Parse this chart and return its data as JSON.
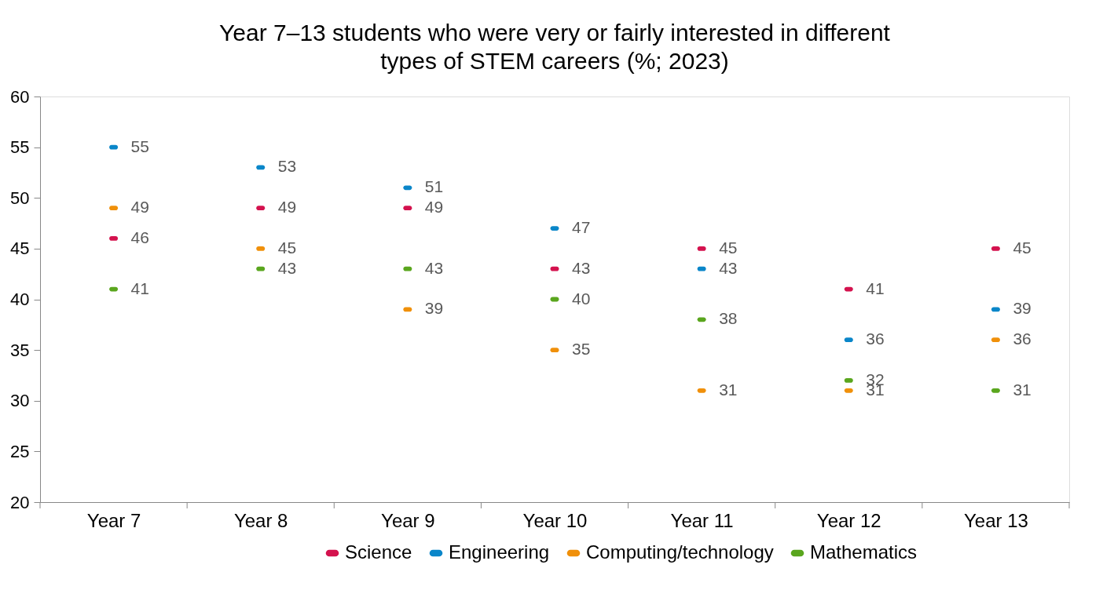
{
  "chart_data": {
    "type": "scatter",
    "title": "Year 7–13 students who were very or fairly interested in different types of STEM careers (%; 2023)",
    "categories": [
      "Year 7",
      "Year 8",
      "Year 9",
      "Year 10",
      "Year 11",
      "Year 12",
      "Year 13"
    ],
    "series": [
      {
        "name": "Science",
        "color": "#d4124e",
        "values": [
          46,
          49,
          49,
          43,
          45,
          41,
          45
        ]
      },
      {
        "name": "Engineering",
        "color": "#0a86c9",
        "values": [
          55,
          53,
          51,
          47,
          43,
          36,
          39
        ]
      },
      {
        "name": "Computing/technology",
        "color": "#f0900a",
        "values": [
          49,
          45,
          39,
          35,
          31,
          31,
          36
        ]
      },
      {
        "name": "Mathematics",
        "color": "#5aa61e",
        "values": [
          41,
          43,
          43,
          40,
          38,
          32,
          31
        ]
      }
    ],
    "ylim": [
      20,
      60
    ],
    "yticks": [
      20,
      25,
      30,
      35,
      40,
      45,
      50,
      55,
      60
    ],
    "grid": false,
    "legend": "bottom",
    "data_labels": true
  }
}
